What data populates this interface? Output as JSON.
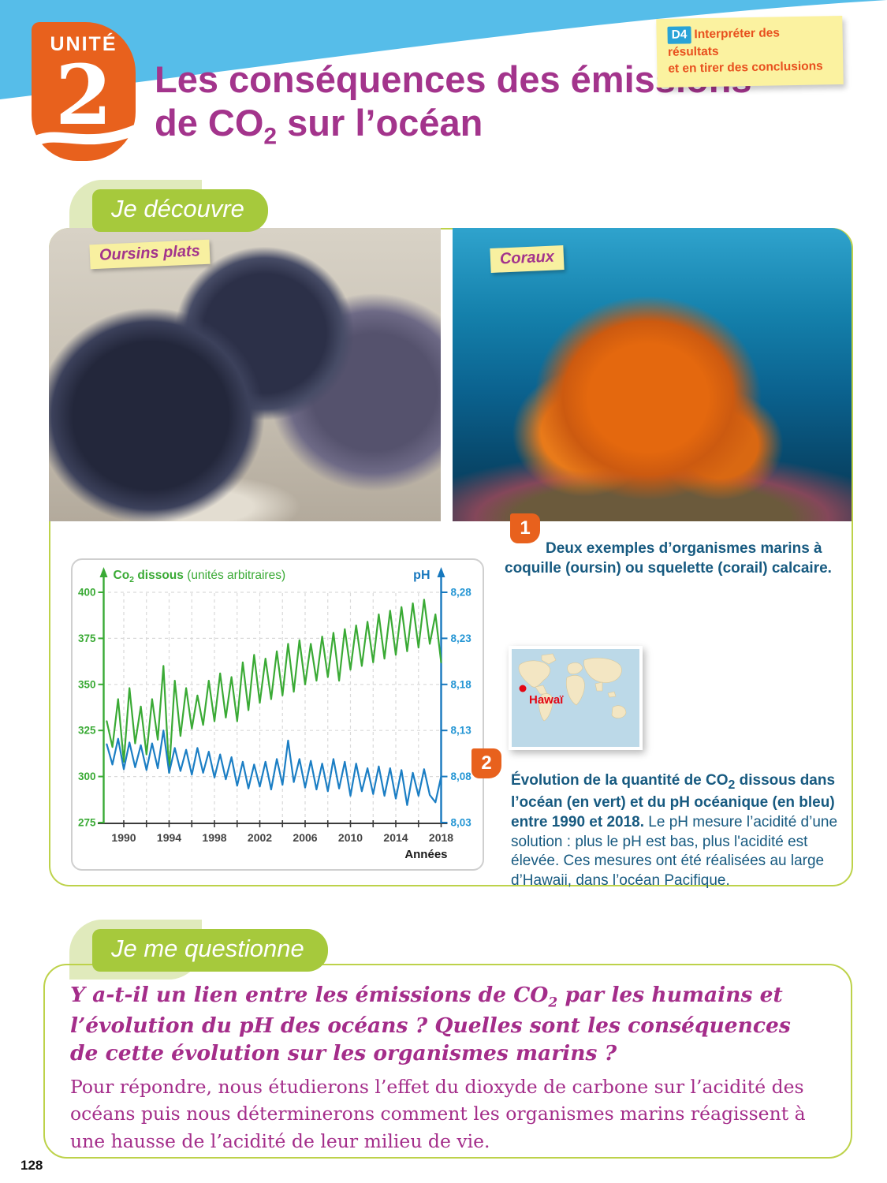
{
  "header": {
    "unit_label": "UNITÉ",
    "unit_number": "2",
    "title_line1": "Les conséquences des émissions",
    "title_line2_a": "de CO",
    "title_line2_sub": "2",
    "title_line2_b": " sur l’océan",
    "skill_note": {
      "badge": "D4",
      "line1": "Interpréter des résultats",
      "line2": "et en tirer des conclusions"
    }
  },
  "banners": {
    "discover": "Je découvre",
    "question": "Je me questionne"
  },
  "photo_labels": {
    "left": "Oursins plats",
    "right": "Coraux"
  },
  "figure1": {
    "number": "1",
    "caption": "Deux exemples d’organismes marins à coquille (oursin) ou squelette (corail) calcaire."
  },
  "figure2": {
    "number": "2",
    "bold_a": "Évolution de la quantité de CO",
    "bold_sub": "2",
    "bold_b": " dissous dans l’océan (en vert) et du pH océanique (en bleu) entre 1990 et 2018.",
    "rest": " Le pH mesure l’acidité d’une solution : plus le pH est bas, plus l'acidité est élevée. Ces mesures ont été réalisées au large d’Hawaii, dans l’océan Pacifique."
  },
  "map": {
    "label": "Hawaï",
    "dot_color": "#e30613",
    "ocean_color": "#bcd9e8",
    "land_color": "#f3e6c3"
  },
  "question_block": {
    "bold_a": "Y a-t-il un lien entre les émissions de CO",
    "bold_sub": "2",
    "bold_b": " par les humains et l’évolution du pH des océans ? Quelles sont les conséquences de cette évolution sur les organismes marins ?",
    "body": "Pour répondre, nous étudierons l’effet du dioxyde de carbone sur l’acidité des océans puis nous déterminerons comment les organismes marins réagissent à une hausse de l’acidité de leur milieu de vie."
  },
  "page_number": "128",
  "chart_data": {
    "type": "line",
    "left_axis": {
      "label_bold": "Co",
      "label_sub": "2",
      "label_bold2": " dissous",
      "label_note": " (unités arbitraires)",
      "ticks": [
        400,
        375,
        350,
        325,
        300,
        275
      ],
      "range": [
        275,
        400
      ],
      "color": "#3aaa35"
    },
    "right_axis": {
      "label": "pH",
      "ticks": [
        "8,28",
        "8,23",
        "8,18",
        "8,13",
        "8,08",
        "8,03"
      ],
      "tick_values": [
        8.28,
        8.23,
        8.18,
        8.13,
        8.08,
        8.03
      ],
      "range": [
        8.03,
        8.28
      ],
      "color": "#1778be",
      "tick_color": "#2596d4"
    },
    "x_axis": {
      "label": "Années",
      "tick_labels": [
        1990,
        1994,
        1998,
        2002,
        2006,
        2010,
        2014,
        2018
      ],
      "minor_step": 2,
      "range": [
        1988.2,
        2018.2
      ],
      "color": "#3b3b3b"
    },
    "grid": {
      "color": "#d9d9d9",
      "dashed": true
    },
    "x_start": 1988.5,
    "x_step": 0.5,
    "series": [
      {
        "name": "CO2 dissous",
        "axis": "left",
        "color": "#3aaa35",
        "values": [
          330,
          316,
          342,
          308,
          348,
          318,
          338,
          312,
          342,
          320,
          360,
          302,
          352,
          322,
          348,
          326,
          344,
          328,
          352,
          330,
          356,
          332,
          354,
          330,
          362,
          336,
          366,
          340,
          364,
          342,
          368,
          344,
          372,
          346,
          374,
          350,
          372,
          352,
          376,
          354,
          378,
          352,
          380,
          358,
          382,
          360,
          384,
          362,
          388,
          364,
          390,
          366,
          392,
          368,
          394,
          370,
          396,
          372,
          388,
          362
        ]
      },
      {
        "name": "pH",
        "axis": "right",
        "color": "#1b7ec4",
        "values": [
          8.115,
          8.093,
          8.121,
          8.088,
          8.117,
          8.09,
          8.114,
          8.087,
          8.116,
          8.089,
          8.13,
          8.084,
          8.111,
          8.086,
          8.109,
          8.082,
          8.111,
          8.084,
          8.107,
          8.079,
          8.104,
          8.077,
          8.101,
          8.07,
          8.096,
          8.067,
          8.093,
          8.069,
          8.096,
          8.066,
          8.099,
          8.071,
          8.119,
          8.074,
          8.099,
          8.068,
          8.097,
          8.066,
          8.094,
          8.064,
          8.099,
          8.067,
          8.096,
          8.059,
          8.094,
          8.064,
          8.089,
          8.061,
          8.091,
          8.059,
          8.089,
          8.056,
          8.087,
          8.049,
          8.084,
          8.059,
          8.088,
          8.06,
          8.052,
          8.08
        ]
      }
    ]
  }
}
